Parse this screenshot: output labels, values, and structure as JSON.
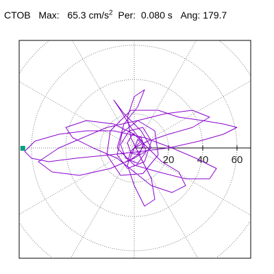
{
  "header": {
    "station": "CTOB",
    "max_label": "Max:",
    "max_value": "65.3",
    "max_unit": "cm/s",
    "max_unit_exp": "2",
    "per_label": "Per:",
    "per_value": "0.080 s",
    "ang_label": "Ang:",
    "ang_value": "179.7"
  },
  "colors": {
    "trace": "#8800cc",
    "grid": "#777777",
    "axis": "#000000",
    "marker": "#00a080"
  },
  "chart_data": {
    "type": "line",
    "coordinate_system": "polar",
    "title": "",
    "xlabel": "",
    "ylabel": "",
    "xlim": [
      -67,
      67
    ],
    "ylim": [
      -65,
      65
    ],
    "rings": [
      20,
      40,
      60,
      80
    ],
    "radial_lines_every_deg": 30,
    "grid": true,
    "tick_labels": [
      "20",
      "40",
      "60"
    ],
    "tick_values": [
      20,
      40,
      60
    ],
    "marker_point": {
      "x": -65.3,
      "y": 0
    },
    "series": [
      {
        "values": [
          [
            0,
            0
          ],
          [
            2,
            5
          ],
          [
            5,
            2
          ],
          [
            3,
            -4
          ],
          [
            -2,
            -3
          ],
          [
            -4,
            3
          ],
          [
            -1,
            8
          ],
          [
            4,
            6
          ],
          [
            7,
            -2
          ],
          [
            2,
            -9
          ],
          [
            -5,
            -6
          ],
          [
            -8,
            2
          ],
          [
            -3,
            10
          ],
          [
            5,
            12
          ],
          [
            10,
            4
          ],
          [
            6,
            -8
          ],
          [
            -4,
            -12
          ],
          [
            -10,
            -4
          ],
          [
            -7,
            9
          ],
          [
            2,
            16
          ],
          [
            12,
            10
          ],
          [
            14,
            -4
          ],
          [
            5,
            -15
          ],
          [
            -8,
            -16
          ],
          [
            -16,
            -4
          ],
          [
            -14,
            10
          ],
          [
            -2,
            22
          ],
          [
            14,
            22
          ],
          [
            26,
            18
          ],
          [
            40,
            16
          ],
          [
            52,
            14
          ],
          [
            60,
            12
          ],
          [
            52,
            8
          ],
          [
            38,
            4
          ],
          [
            20,
            0
          ],
          [
            4,
            -2
          ],
          [
            -14,
            -4
          ],
          [
            -34,
            -6
          ],
          [
            -50,
            -8
          ],
          [
            -60,
            -6
          ],
          [
            -64,
            -2
          ],
          [
            -58,
            4
          ],
          [
            -44,
            8
          ],
          [
            -28,
            10
          ],
          [
            -12,
            10
          ],
          [
            6,
            6
          ],
          [
            22,
            0
          ],
          [
            36,
            -6
          ],
          [
            48,
            -12
          ],
          [
            44,
            -18
          ],
          [
            30,
            -18
          ],
          [
            14,
            -14
          ],
          [
            0,
            -10
          ],
          [
            -10,
            0
          ],
          [
            -6,
            14
          ],
          [
            2,
            24
          ],
          [
            6,
            34
          ],
          [
            0,
            30
          ],
          [
            -4,
            18
          ],
          [
            -2,
            6
          ],
          [
            4,
            -6
          ],
          [
            10,
            -18
          ],
          [
            12,
            -30
          ],
          [
            6,
            -34
          ],
          [
            0,
            -22
          ],
          [
            -4,
            -10
          ],
          [
            0,
            0
          ],
          [
            8,
            4
          ],
          [
            20,
            8
          ],
          [
            34,
            12
          ],
          [
            44,
            18
          ],
          [
            34,
            22
          ],
          [
            18,
            20
          ],
          [
            2,
            16
          ],
          [
            -16,
            12
          ],
          [
            -30,
            6
          ],
          [
            -44,
            0
          ],
          [
            -56,
            -8
          ],
          [
            -48,
            -14
          ],
          [
            -32,
            -16
          ],
          [
            -14,
            -12
          ],
          [
            0,
            -6
          ],
          [
            10,
            0
          ],
          [
            4,
            10
          ],
          [
            -6,
            20
          ],
          [
            -12,
            28
          ],
          [
            -8,
            22
          ],
          [
            -2,
            12
          ],
          [
            6,
            2
          ],
          [
            16,
            -8
          ],
          [
            26,
            -14
          ],
          [
            30,
            -22
          ],
          [
            22,
            -26
          ],
          [
            10,
            -22
          ],
          [
            0,
            -14
          ],
          [
            -10,
            -6
          ],
          [
            -24,
            0
          ],
          [
            -36,
            6
          ],
          [
            -40,
            12
          ],
          [
            -28,
            16
          ],
          [
            -12,
            14
          ],
          [
            0,
            8
          ],
          [
            6,
            2
          ],
          [
            2,
            -4
          ],
          [
            -4,
            -8
          ],
          [
            -2,
            -2
          ],
          [
            3,
            3
          ],
          [
            1,
            1
          ],
          [
            0,
            0
          ]
        ]
      }
    ]
  }
}
